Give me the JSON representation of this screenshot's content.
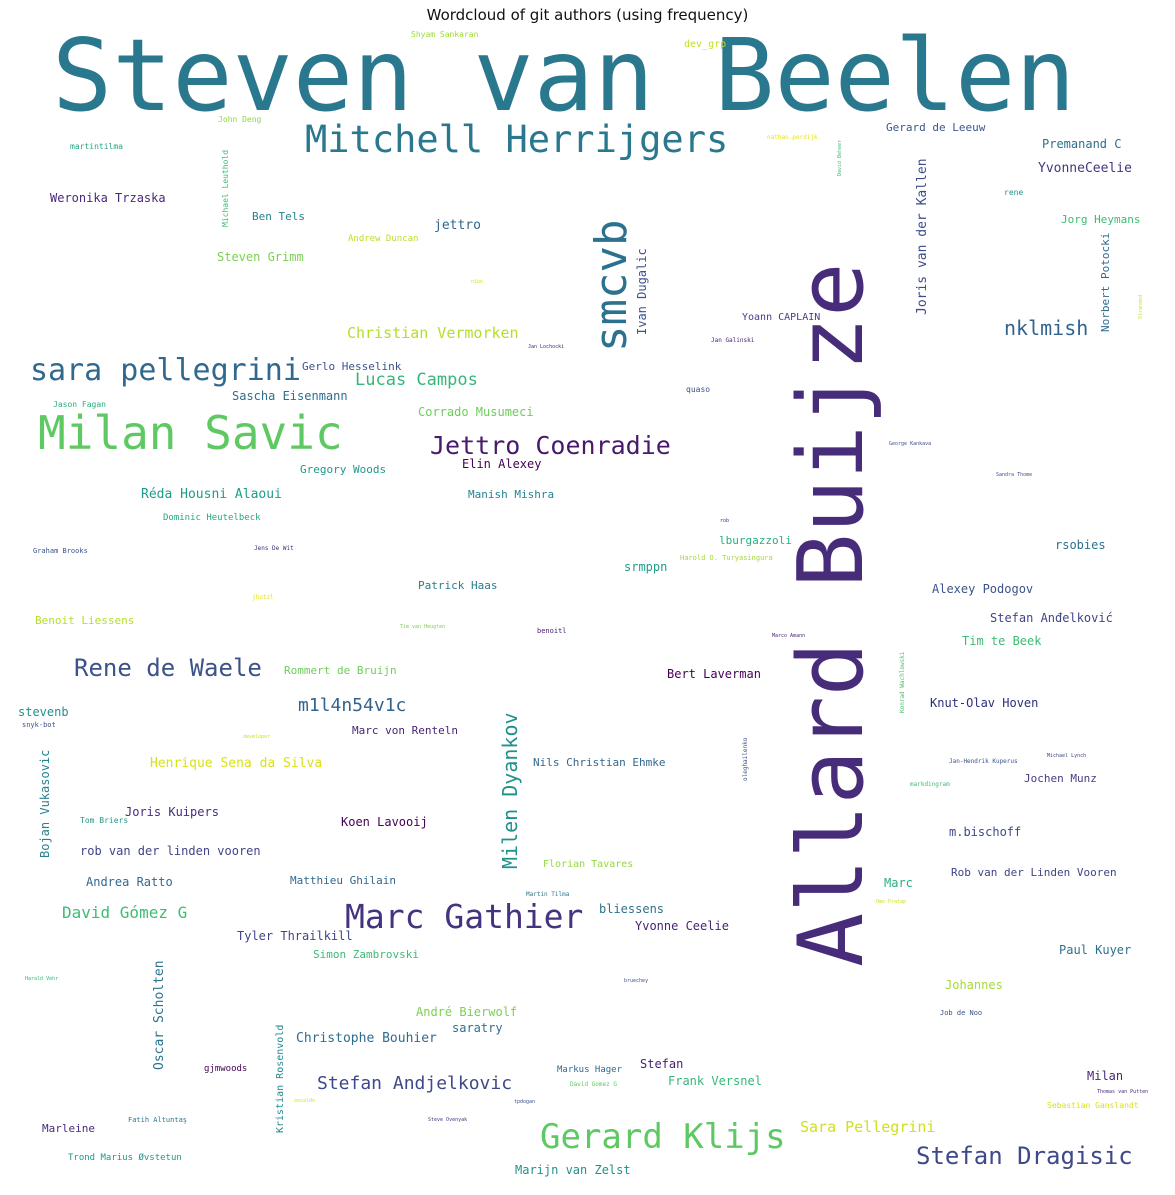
{
  "title": "Wordcloud of git authors (using frequency)",
  "words": [
    {
      "text": "Steven van Beelen",
      "color": "#2a788e",
      "vertical": false
    },
    {
      "text": "Allard Buijze",
      "color": "#472c7a",
      "vertical": true
    },
    {
      "text": "Mitchell Herrijgers",
      "color": "#2a788e",
      "vertical": false
    },
    {
      "text": "smcvb",
      "color": "#2c728e",
      "vertical": true
    },
    {
      "text": "Milan Savic",
      "color": "#5ec962",
      "vertical": false
    },
    {
      "text": "sara pellegrini",
      "color": "#31688e",
      "vertical": false
    },
    {
      "text": "Jettro Coenradie",
      "color": "#481a6c",
      "vertical": false
    },
    {
      "text": "Marc Gathier",
      "color": "#46337f",
      "vertical": false
    },
    {
      "text": "Gerard Klijs",
      "color": "#5ec962",
      "vertical": false
    },
    {
      "text": "Rene de Waele",
      "color": "#3b528b",
      "vertical": false
    },
    {
      "text": "Stefan Dragisic",
      "color": "#3e4989",
      "vertical": false
    },
    {
      "text": "Milen Dyankov",
      "color": "#21918c",
      "vertical": true
    },
    {
      "text": "Lucas Campos",
      "color": "#35b779",
      "vertical": false
    },
    {
      "text": "nklmish",
      "color": "#33638d",
      "vertical": false
    },
    {
      "text": "Christian Vermorken",
      "color": "#b5de2b",
      "vertical": false
    },
    {
      "text": "m1l4n54v1c",
      "color": "#33638d",
      "vertical": false
    },
    {
      "text": "Stefan Andjelkovic",
      "color": "#3e4989",
      "vertical": false
    },
    {
      "text": "David Gómez G",
      "color": "#3fbc73",
      "vertical": false
    },
    {
      "text": "Sara Pellegrini",
      "color": "#d0e11c",
      "vertical": false
    },
    {
      "text": "Henrique Sena da Silva",
      "color": "#d8e219",
      "vertical": false
    },
    {
      "text": "Joris van der Kallen",
      "color": "#3e4c8a",
      "vertical": true
    },
    {
      "text": "Oscar Scholten",
      "color": "#2c728e",
      "vertical": true
    },
    {
      "text": "Bojan Vukasovic",
      "color": "#26828e",
      "vertical": true
    },
    {
      "text": "Ivan Dugalic",
      "color": "#3b528b",
      "vertical": true
    },
    {
      "text": "Norbert Potocki",
      "color": "#2f6c8e",
      "vertical": true
    },
    {
      "text": "Kristian Rosenvold",
      "color": "#23898e",
      "vertical": true
    },
    {
      "text": "Michael Leuthold",
      "color": "#3dbc74",
      "vertical": true
    },
    {
      "text": "Gerard de Leeuw",
      "color": "#39568c",
      "vertical": false
    },
    {
      "text": "Premanand C",
      "color": "#2d708e",
      "vertical": false
    },
    {
      "text": "YvonneCeelie",
      "color": "#453581",
      "vertical": false
    },
    {
      "text": "Jorg Heymans",
      "color": "#3dbc74",
      "vertical": false
    },
    {
      "text": "rene",
      "color": "#21918c",
      "vertical": false
    },
    {
      "text": "Weronika Trzaska",
      "color": "#482878",
      "vertical": false
    },
    {
      "text": "Ben Tels",
      "color": "#26828e",
      "vertical": false
    },
    {
      "text": "jettro",
      "color": "#31688e",
      "vertical": false
    },
    {
      "text": "Steven Grimm",
      "color": "#7ad151",
      "vertical": false
    },
    {
      "text": "Andrew Duncan",
      "color": "#b8de29",
      "vertical": false
    },
    {
      "text": "martintilma",
      "color": "#21a685",
      "vertical": false
    },
    {
      "text": "John Deng",
      "color": "#90d743",
      "vertical": false
    },
    {
      "text": "Shyam Sankaran",
      "color": "#a0da39",
      "vertical": false
    },
    {
      "text": "dev_grp",
      "color": "#c2df23",
      "vertical": false
    },
    {
      "text": "nathan.perdijk",
      "color": "#e5e419",
      "vertical": false
    },
    {
      "text": "Yoann CAPLAIN",
      "color": "#433e85",
      "vertical": false
    },
    {
      "text": "Gerlo Hesselink",
      "color": "#3b528b",
      "vertical": false
    },
    {
      "text": "Sascha Eisenmann",
      "color": "#2e6e8e",
      "vertical": false
    },
    {
      "text": "Corrado Musumeci",
      "color": "#6ccd5a",
      "vertical": false
    },
    {
      "text": "Jason Fagan",
      "color": "#29af7f",
      "vertical": false
    },
    {
      "text": "Gregory Woods",
      "color": "#1f988b",
      "vertical": false
    },
    {
      "text": "Elin Alexey",
      "color": "#440154",
      "vertical": false
    },
    {
      "text": "Manish Mishra",
      "color": "#25838e",
      "vertical": false
    },
    {
      "text": "Réda Housni Alaoui",
      "color": "#1e9c89",
      "vertical": false
    },
    {
      "text": "Dominic Heutelbeck",
      "color": "#22a884",
      "vertical": false
    },
    {
      "text": "Graham Brooks",
      "color": "#3b528b",
      "vertical": false
    },
    {
      "text": "Jens De Wit",
      "color": "#472d7b",
      "vertical": false
    },
    {
      "text": "lburgazzoli",
      "color": "#29af7f",
      "vertical": false
    },
    {
      "text": "Harold O. Turyasingura",
      "color": "#a2da37",
      "vertical": false
    },
    {
      "text": "srmppn",
      "color": "#1f9e89",
      "vertical": false
    },
    {
      "text": "rsobies",
      "color": "#2d708e",
      "vertical": false
    },
    {
      "text": "Patrick Haas",
      "color": "#287c8e",
      "vertical": false
    },
    {
      "text": "Alexey Podogov",
      "color": "#3b528b",
      "vertical": false
    },
    {
      "text": "Benoit Liessens",
      "color": "#b5de2b",
      "vertical": false
    },
    {
      "text": "jhutzl",
      "color": "#e5e419",
      "vertical": false
    },
    {
      "text": "Tim van Heugten",
      "color": "#7ad151",
      "vertical": false
    },
    {
      "text": "benoitl",
      "color": "#482173",
      "vertical": false
    },
    {
      "text": "Stefan Anđelković",
      "color": "#404588",
      "vertical": false
    },
    {
      "text": "Tim te Beek",
      "color": "#3dbc74",
      "vertical": false
    },
    {
      "text": "Rommert de Bruijn",
      "color": "#6ece58",
      "vertical": false
    },
    {
      "text": "Bert Laverman",
      "color": "#440154",
      "vertical": false
    },
    {
      "text": "Knut-Olav Hoven",
      "color": "#2a2f7a",
      "vertical": false
    },
    {
      "text": "stevenb",
      "color": "#21918c",
      "vertical": false
    },
    {
      "text": "snyk-bot",
      "color": "#3b528b",
      "vertical": false
    },
    {
      "text": "Marc von Renteln",
      "color": "#482475",
      "vertical": false
    },
    {
      "text": "Nils Christian Ehmke",
      "color": "#31688e",
      "vertical": false
    },
    {
      "text": "Joris Kuipers",
      "color": "#472d7b",
      "vertical": false
    },
    {
      "text": "Tom Briers",
      "color": "#1f988b",
      "vertical": false
    },
    {
      "text": "Koen Lavooij",
      "color": "#440154",
      "vertical": false
    },
    {
      "text": "rob van der linden vooren",
      "color": "#414487",
      "vertical": false
    },
    {
      "text": "Florian Tavares",
      "color": "#95d840",
      "vertical": false
    },
    {
      "text": "Andrea Ratto",
      "color": "#31688e",
      "vertical": false
    },
    {
      "text": "Matthieu Ghilain",
      "color": "#31688e",
      "vertical": false
    },
    {
      "text": "Martin Tilma",
      "color": "#2a788e",
      "vertical": false
    },
    {
      "text": "bliessens",
      "color": "#2c728e",
      "vertical": false
    },
    {
      "text": "Yvonne Ceelie",
      "color": "#482475",
      "vertical": false
    },
    {
      "text": "Tyler Thrailkill",
      "color": "#404688",
      "vertical": false
    },
    {
      "text": "Simon Zambrovski",
      "color": "#3dbc74",
      "vertical": false
    },
    {
      "text": "Paul Kuyer",
      "color": "#2d708e",
      "vertical": false
    },
    {
      "text": "Johannes",
      "color": "#a5db36",
      "vertical": false
    },
    {
      "text": "André Bierwolf",
      "color": "#7ad151",
      "vertical": false
    },
    {
      "text": "saratry",
      "color": "#2e6f8e",
      "vertical": false
    },
    {
      "text": "Christophe Bouhier",
      "color": "#2f6c8e",
      "vertical": false
    },
    {
      "text": "gjmwoods",
      "color": "#440154",
      "vertical": false
    },
    {
      "text": "Markus Hager",
      "color": "#31688e",
      "vertical": false
    },
    {
      "text": "David Gomez G",
      "color": "#5ec962",
      "vertical": false
    },
    {
      "text": "Stefan",
      "color": "#481d6f",
      "vertical": false
    },
    {
      "text": "Frank Versnel",
      "color": "#35b779",
      "vertical": false
    },
    {
      "text": "Milan",
      "color": "#482878",
      "vertical": false
    },
    {
      "text": "Marleine",
      "color": "#472a7a",
      "vertical": false
    },
    {
      "text": "Fatih Altuntaş",
      "color": "#2a788e",
      "vertical": false
    },
    {
      "text": "Steve Ovenyak",
      "color": "#443a83",
      "vertical": false
    },
    {
      "text": "Trond Marius Øvstetun",
      "color": "#1f988b",
      "vertical": false
    },
    {
      "text": "Marijn van Zelst",
      "color": "#21918c",
      "vertical": false
    },
    {
      "text": "Marc",
      "color": "#29af7f",
      "vertical": false
    },
    {
      "text": "Rob van der Linden Vooren",
      "color": "#414487",
      "vertical": false
    },
    {
      "text": "m.bischoff",
      "color": "#3e4989",
      "vertical": false
    },
    {
      "text": "Jochen Munz",
      "color": "#433e85",
      "vertical": false
    },
    {
      "text": "Jan-Hendrik Kuperus",
      "color": "#3b528b",
      "vertical": false
    },
    {
      "text": "Michael Lynch",
      "color": "#404588",
      "vertical": false
    },
    {
      "text": "markdingram",
      "color": "#3fbc73",
      "vertical": false
    },
    {
      "text": "oleghailenko",
      "color": "#3b528b",
      "vertical": true
    },
    {
      "text": "Konrad Wachlowski",
      "color": "#4ac16d",
      "vertical": true
    },
    {
      "text": "Job de Noo",
      "color": "#3b528b",
      "vertical": false
    },
    {
      "text": "Sebastian Ganslandt",
      "color": "#d8e219",
      "vertical": false
    },
    {
      "text": "Thomas van Putten",
      "color": "#482878",
      "vertical": false
    },
    {
      "text": "Omo Pratap",
      "color": "#d0e11c",
      "vertical": false
    },
    {
      "text": "Harald Vehr",
      "color": "#35b779",
      "vertical": false
    },
    {
      "text": "George Kankava",
      "color": "#3b528b",
      "vertical": false
    },
    {
      "text": "Sandra Thome",
      "color": "#3b528b",
      "vertical": false
    },
    {
      "text": "Jan Galinski",
      "color": "#482475",
      "vertical": false
    },
    {
      "text": "Jan Lochocki",
      "color": "#482475",
      "vertical": false
    },
    {
      "text": "quaso",
      "color": "#3b528b",
      "vertical": false
    },
    {
      "text": "rob",
      "color": "#482475",
      "vertical": false
    },
    {
      "text": "nibo",
      "color": "#d8e219",
      "vertical": false
    },
    {
      "text": "Marco Amann",
      "color": "#482475",
      "vertical": false
    },
    {
      "text": "bruechey",
      "color": "#3b528b",
      "vertical": false
    },
    {
      "text": "tpdogan",
      "color": "#3b528b",
      "vertical": false
    },
    {
      "text": "David Beheer",
      "color": "#3dbc74",
      "vertical": true
    },
    {
      "text": "developer",
      "color": "#d0e11c",
      "vertical": false
    },
    {
      "text": "oscaldo",
      "color": "#d0e11c",
      "vertical": false
    },
    {
      "text": "Stranded",
      "color": "#d0e11c",
      "vertical": true
    }
  ]
}
